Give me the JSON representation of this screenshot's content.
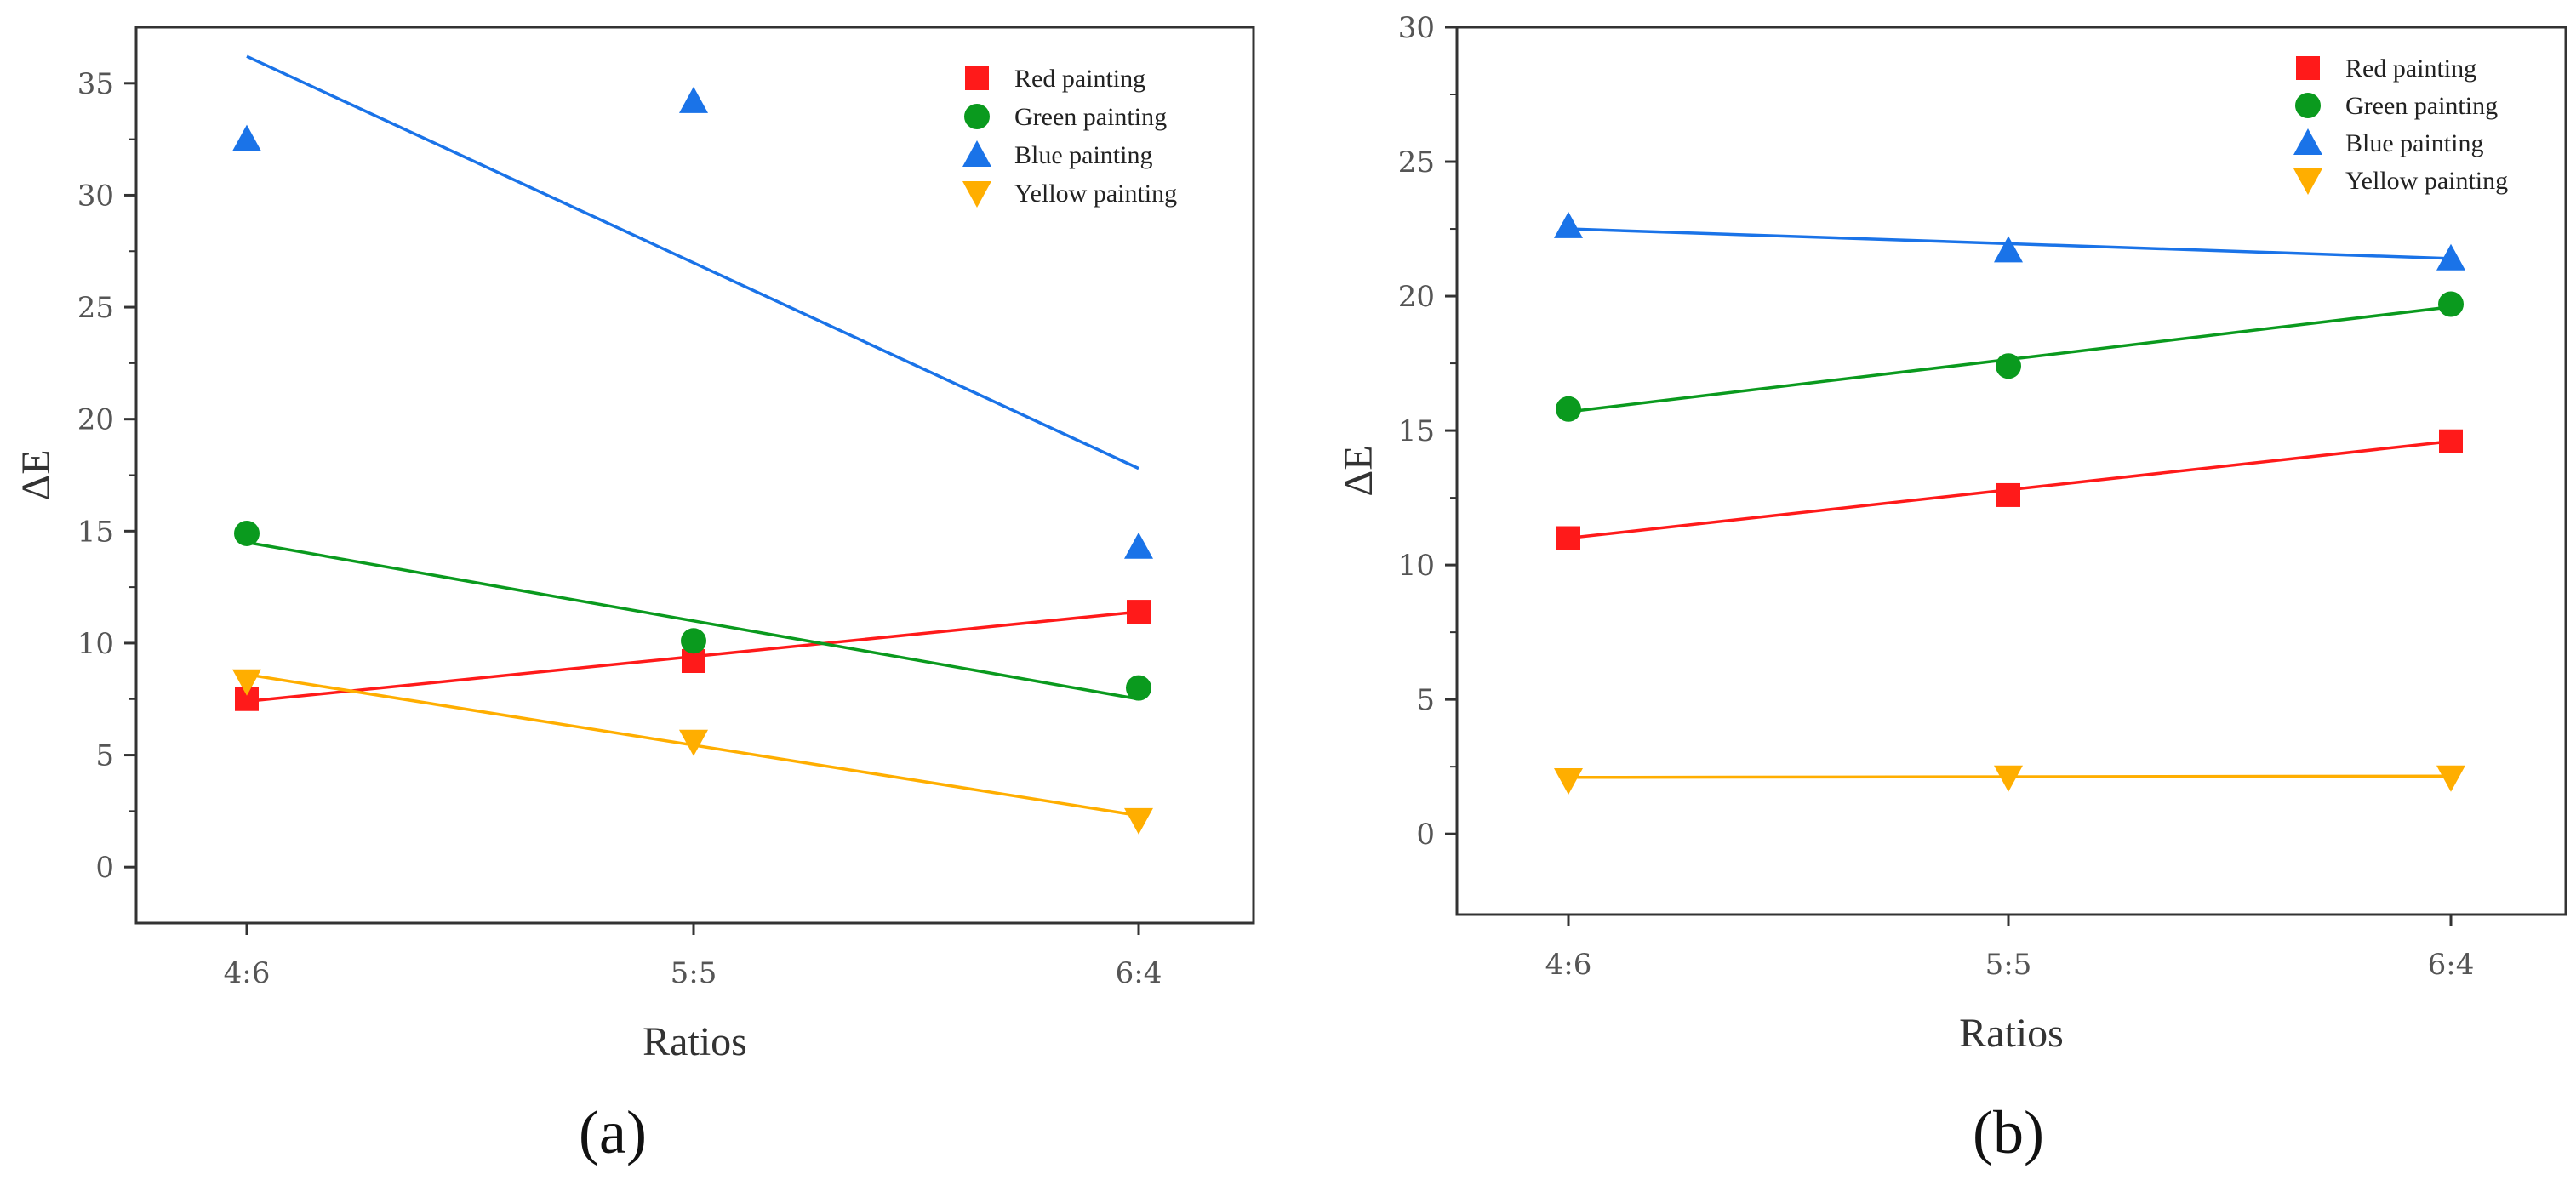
{
  "colors": {
    "Red painting": "#ff1a1a",
    "Green painting": "#0a9a1e",
    "Blue painting": "#1a73e8",
    "Yellow painting": "#ffae00"
  },
  "chart_data": [
    {
      "type": "scatter",
      "panel_label": "(a)",
      "xlabel": "Ratios",
      "ylabel": "ΔE",
      "categories": [
        "4:6",
        "5:5",
        "6:4"
      ],
      "ylim": [
        -2.5,
        37.5
      ],
      "yticks": [
        0,
        5,
        10,
        15,
        20,
        25,
        30,
        35
      ],
      "legend_position": "top-right",
      "series": [
        {
          "name": "Red painting",
          "marker": "square",
          "values": [
            7.5,
            9.2,
            11.4
          ],
          "fit": [
            7.4,
            11.4
          ]
        },
        {
          "name": "Green painting",
          "marker": "circle",
          "values": [
            14.9,
            10.1,
            8.0
          ],
          "fit": [
            14.5,
            7.5
          ]
        },
        {
          "name": "Blue painting",
          "marker": "triangle-up",
          "values": [
            32.5,
            34.2,
            14.3
          ],
          "fit": [
            36.2,
            17.8
          ]
        },
        {
          "name": "Yellow painting",
          "marker": "triangle-down",
          "values": [
            8.3,
            5.6,
            2.1
          ],
          "fit": [
            8.6,
            2.3
          ]
        }
      ]
    },
    {
      "type": "scatter",
      "panel_label": "(b)",
      "xlabel": "Ratios",
      "ylabel": "ΔE",
      "categories": [
        "4:6",
        "5:5",
        "6:4"
      ],
      "ylim": [
        -3,
        30
      ],
      "yticks": [
        0,
        5,
        10,
        15,
        20,
        25,
        30
      ],
      "legend_position": "top-right",
      "series": [
        {
          "name": "Red painting",
          "marker": "square",
          "values": [
            11.0,
            12.6,
            14.6
          ],
          "fit": [
            11.0,
            14.6
          ]
        },
        {
          "name": "Green painting",
          "marker": "circle",
          "values": [
            15.8,
            17.4,
            19.7
          ],
          "fit": [
            15.7,
            19.6
          ]
        },
        {
          "name": "Blue painting",
          "marker": "triangle-up",
          "values": [
            22.6,
            21.7,
            21.4
          ],
          "fit": [
            22.5,
            21.4
          ]
        },
        {
          "name": "Yellow painting",
          "marker": "triangle-down",
          "values": [
            2.0,
            2.1,
            2.1
          ],
          "fit": [
            2.1,
            2.15
          ]
        }
      ]
    }
  ]
}
